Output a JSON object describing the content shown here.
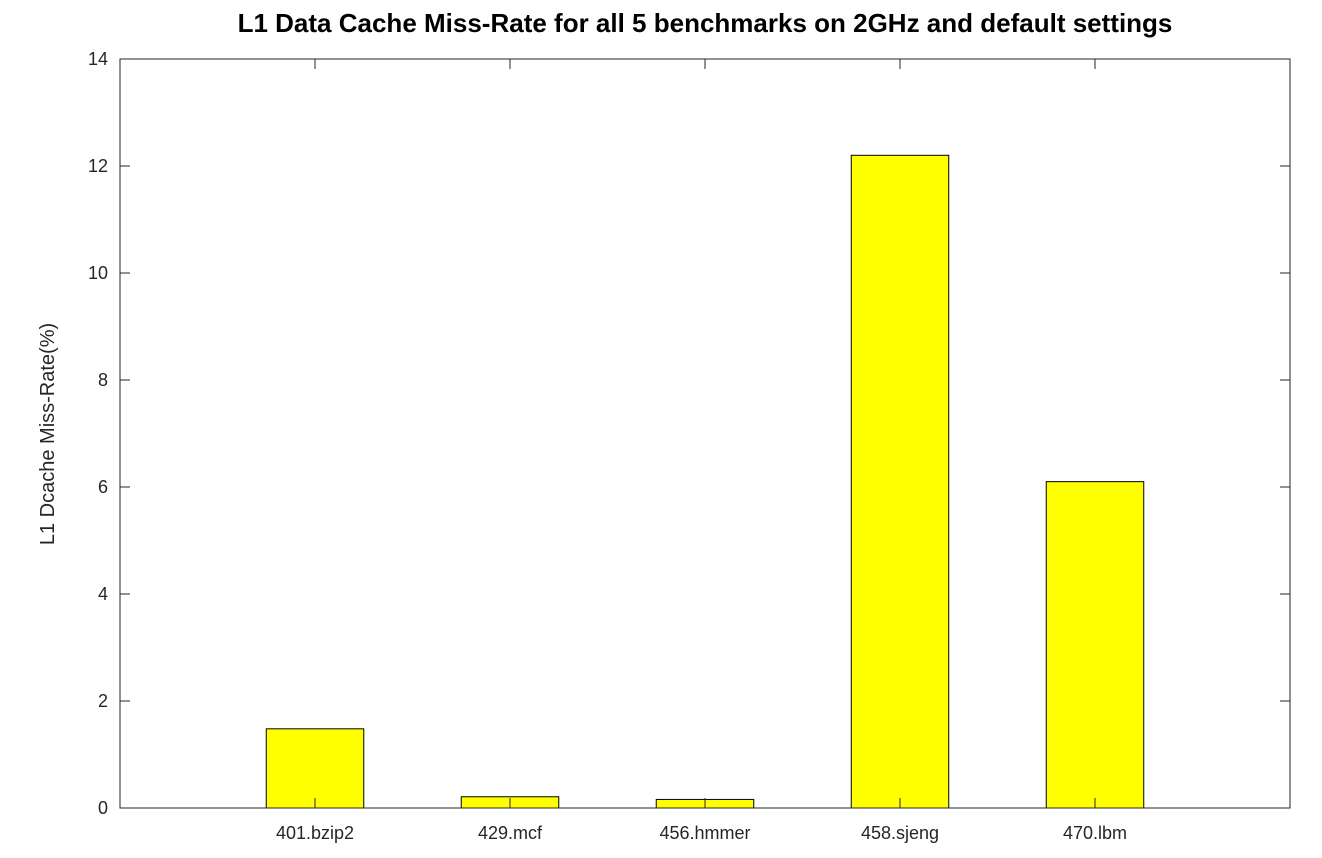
{
  "chart_data": {
    "type": "bar",
    "title": "L1 Data Cache Miss-Rate for all 5 benchmarks on 2GHz and default settings",
    "xlabel": "",
    "ylabel": "L1 Dcache Miss-Rate(%)",
    "categories": [
      "401.bzip2",
      "429.mcf",
      "456.hmmer",
      "458.sjeng",
      "470.lbm"
    ],
    "values": [
      1.48,
      0.21,
      0.16,
      12.2,
      6.1
    ],
    "ylim": [
      0,
      14
    ],
    "yticks": [
      0,
      2,
      4,
      6,
      8,
      10,
      12,
      14
    ],
    "xlim": [
      0,
      6
    ],
    "grid": false,
    "bar_color": "#ffff00"
  }
}
